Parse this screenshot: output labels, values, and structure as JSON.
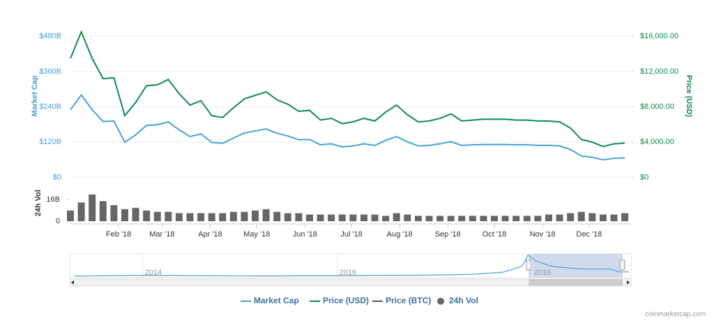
{
  "chart_data": [
    {
      "type": "line",
      "ylabel": "Market Cap",
      "y2label": "Price (USD)",
      "x": [
        1,
        8,
        15,
        22,
        29,
        36,
        43,
        50,
        57,
        64,
        71,
        78,
        85,
        92,
        99,
        106,
        113,
        120,
        127,
        134,
        141,
        148,
        155,
        162,
        169,
        176,
        183,
        190,
        197,
        204,
        211,
        218,
        225,
        232,
        239,
        246,
        253,
        260,
        267,
        274,
        281,
        288,
        295,
        302,
        309,
        316,
        323,
        330,
        337,
        344,
        351,
        358
      ],
      "xlim": [
        1,
        362
      ],
      "xticks": [
        {
          "value": 32,
          "label": "Feb '18"
        },
        {
          "value": 60,
          "label": "Mar '18"
        },
        {
          "value": 91,
          "label": "Apr '18"
        },
        {
          "value": 121,
          "label": "May '18"
        },
        {
          "value": 152,
          "label": "Jun '18"
        },
        {
          "value": 182,
          "label": "Jul '18"
        },
        {
          "value": 213,
          "label": "Aug '18"
        },
        {
          "value": 244,
          "label": "Sep '18"
        },
        {
          "value": 274,
          "label": "Oct '18"
        },
        {
          "value": 305,
          "label": "Nov '18"
        },
        {
          "value": 335,
          "label": "Dec '18"
        }
      ],
      "ylim": [
        0,
        580
      ],
      "yticks": [
        {
          "value": 0,
          "label": "$0"
        },
        {
          "value": 120,
          "label": "$120B"
        },
        {
          "value": 240,
          "label": "$240B"
        },
        {
          "value": 360,
          "label": "$360B"
        },
        {
          "value": 480,
          "label": "$480B"
        }
      ],
      "y2lim": [
        0,
        19333
      ],
      "y2ticks": [
        {
          "value": 0,
          "label": "$0"
        },
        {
          "value": 4000,
          "label": "$4,000.00"
        },
        {
          "value": 8000,
          "label": "$8,000.00"
        },
        {
          "value": 12000,
          "label": "$12,000.00"
        },
        {
          "value": 16000,
          "label": "$16,000.00"
        }
      ],
      "grid": true,
      "series": [
        {
          "name": "Market Cap",
          "color": "#45a2d6",
          "values": [
            230,
            281,
            230,
            190,
            192,
            119,
            145,
            177,
            179,
            189,
            162,
            139,
            148,
            119,
            116,
            134,
            151,
            158,
            165,
            150,
            141,
            128,
            129,
            111,
            114,
            104,
            107,
            114,
            109,
            126,
            139,
            121,
            107,
            109,
            114,
            122,
            109,
            111,
            112,
            112,
            112,
            111,
            111,
            109,
            109,
            107,
            95,
            73,
            68,
            60,
            65,
            66
          ]
        },
        {
          "name": "Price (USD)",
          "color": "#0d8b4d",
          "axis": "y2",
          "values": [
            13500,
            16500,
            13500,
            11200,
            11300,
            7000,
            8500,
            10400,
            10500,
            11100,
            9500,
            8200,
            8700,
            7000,
            6800,
            7900,
            8900,
            9300,
            9700,
            8800,
            8300,
            7500,
            7600,
            6500,
            6700,
            6100,
            6300,
            6700,
            6400,
            7400,
            8200,
            7100,
            6300,
            6400,
            6700,
            7200,
            6400,
            6500,
            6600,
            6600,
            6600,
            6500,
            6500,
            6400,
            6400,
            6300,
            5600,
            4300,
            4000,
            3500,
            3800,
            3900
          ]
        }
      ]
    },
    {
      "type": "bar",
      "ylabel": "24h Vol",
      "x": [
        1,
        8,
        15,
        22,
        29,
        36,
        43,
        50,
        57,
        64,
        71,
        78,
        85,
        92,
        99,
        106,
        113,
        120,
        127,
        134,
        141,
        148,
        155,
        162,
        169,
        176,
        183,
        190,
        197,
        204,
        211,
        218,
        225,
        232,
        239,
        246,
        253,
        260,
        267,
        274,
        281,
        288,
        295,
        302,
        309,
        316,
        323,
        330,
        337,
        344,
        351,
        358
      ],
      "xlim": [
        1,
        362
      ],
      "ylim": [
        0,
        26
      ],
      "yticks": [
        0,
        {
          "value": 16,
          "label": "16B"
        }
      ],
      "color": "#666666",
      "values": [
        8,
        14,
        20,
        15,
        12,
        9,
        10,
        8,
        7,
        7,
        6,
        6,
        6,
        6,
        6,
        7,
        7,
        8,
        9,
        7,
        6,
        6,
        5,
        5,
        5,
        5,
        5,
        5,
        5,
        4,
        6,
        5,
        4,
        4,
        4,
        4,
        4,
        4,
        4,
        4,
        4,
        4,
        4,
        4,
        5,
        5,
        6,
        7,
        6,
        5,
        5,
        6
      ]
    },
    {
      "type": "line",
      "x": [
        2013.3,
        2014,
        2014.5,
        2015,
        2016,
        2017,
        2017.4,
        2017.7,
        2017.9,
        2017.96,
        2018.05,
        2018.2,
        2018.5,
        2018.8,
        2018.9,
        2019.0
      ],
      "xlim": [
        2013.25,
        2019.02
      ],
      "xticks": [
        {
          "value": 2014,
          "label": "2014"
        },
        {
          "value": 2016,
          "label": "2016"
        },
        {
          "value": 2018,
          "label": "2018"
        }
      ],
      "ylim": [
        0,
        330
      ],
      "color": "#45a2d6",
      "values": [
        1,
        12,
        8,
        3,
        6,
        17,
        30,
        60,
        150,
        320,
        230,
        150,
        110,
        110,
        66,
        66
      ]
    }
  ],
  "legend": [
    {
      "name": "Market Cap",
      "color": "#45a2d6",
      "symbol": "line"
    },
    {
      "name": "Price (USD)",
      "color": "#0d8b4d",
      "symbol": "line"
    },
    {
      "name": "Price (BTC)",
      "color": "#555555",
      "symbol": "line"
    },
    {
      "name": "24h Vol",
      "color": "#666666",
      "symbol": "circle"
    }
  ],
  "credit": "coinmarketcap.com"
}
